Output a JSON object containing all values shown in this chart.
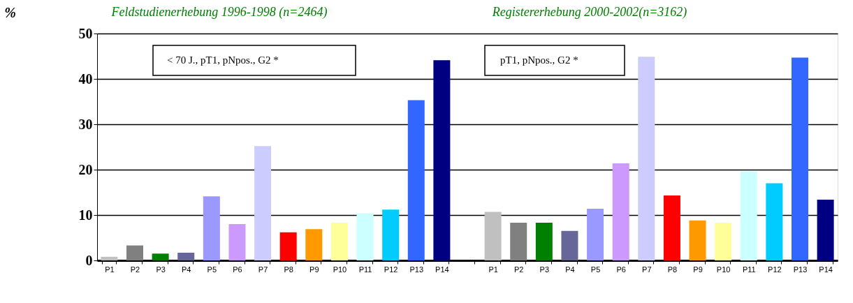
{
  "chart_data": {
    "type": "bar",
    "ylabel": "%",
    "categories": [
      "P1",
      "P2",
      "P3",
      "P4",
      "P5",
      "P6",
      "P7",
      "P8",
      "P9",
      "P10",
      "P11",
      "P12",
      "P13",
      "P14",
      null,
      "P1",
      "P2",
      "P3",
      "P4",
      "P5",
      "P6",
      "P7",
      "P8",
      "P9",
      "P10",
      "P11",
      "P12",
      "P13",
      "P14"
    ],
    "values": [
      0.8,
      3.3,
      1.5,
      1.7,
      14.1,
      8.0,
      25.2,
      6.2,
      6.9,
      8.3,
      10.4,
      11.2,
      35.3,
      44.1,
      0,
      10.7,
      8.3,
      8.3,
      6.5,
      11.4,
      21.4,
      44.9,
      14.3,
      8.8,
      8.3,
      19.6,
      17.0,
      44.7,
      13.4
    ],
    "colors": [
      "#c0c0c0",
      "#808080",
      "#008000",
      "#666699",
      "#9999ff",
      "#cc99ff",
      "#ccccff",
      "#ff0000",
      "#ff9900",
      "#ffff99",
      "#ccffff",
      "#00ccff",
      "#3366ff",
      "#000080",
      "#c0c0c0",
      "#c0c0c0",
      "#808080",
      "#008000",
      "#666699",
      "#9999ff",
      "#cc99ff",
      "#ccccff",
      "#ff0000",
      "#ff9900",
      "#ffff99",
      "#ccffff",
      "#00ccff",
      "#3366ff",
      "#000080"
    ],
    "ylim": [
      0,
      50
    ],
    "yticks": [
      0,
      10,
      20,
      30,
      40,
      50
    ],
    "grid": "y",
    "annotations": [
      "Feldstudienerhebung 1996-1998 (n=2464)",
      "Registererhebung 2000-2002(n=3162)",
      "< 70 J., pT1, pNpos., G2 *",
      "pT1, pNpos., G2 *"
    ]
  }
}
